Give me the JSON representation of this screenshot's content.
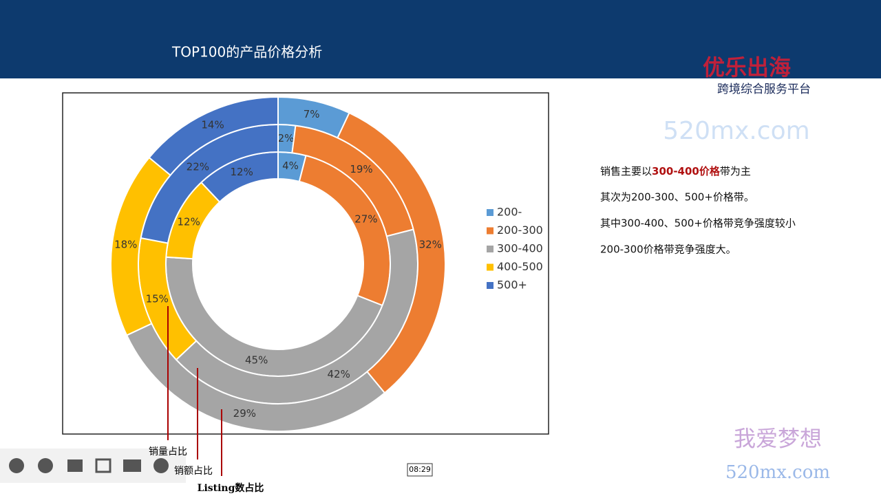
{
  "header": {
    "title": "TOP100的产品价格分析"
  },
  "chart_data": {
    "type": "donut",
    "categories": [
      "200-",
      "200-300",
      "300-400",
      "400-500",
      "500+"
    ],
    "colors": [
      "#5b9bd5",
      "#ed7d31",
      "#a5a5a5",
      "#ffc000",
      "#4472c4"
    ],
    "series": [
      {
        "name": "销量占比",
        "values": [
          4,
          27,
          45,
          12,
          12
        ],
        "value_labels": [
          "4%",
          "27%",
          "45%",
          "12%",
          "12%"
        ]
      },
      {
        "name": "销额占比",
        "values": [
          2,
          19,
          42,
          15,
          22
        ],
        "value_labels": [
          "2%",
          "19%",
          "42%",
          "15%",
          "22%"
        ]
      },
      {
        "name": "Listing数占比",
        "values": [
          7,
          32,
          29,
          18,
          14
        ],
        "value_labels": [
          "7%",
          "32%",
          "29%",
          "18%",
          "14%"
        ]
      }
    ],
    "legend": "right"
  },
  "notes": [
    {
      "before": "销售主要以",
      "highlight": "300-400价格",
      "after": "带为主"
    },
    "其次为200-300、500+价格带。",
    "其中300-400、500+价格带竞争强度较小",
    "200-300价格带竞争强度大。"
  ],
  "logo": {
    "brand": "优乐出海",
    "tagline": "跨境综合服务平台"
  },
  "watermark": {
    "cn": "我爱梦想",
    "site": "520mx.com"
  },
  "timestamp": "08:29"
}
